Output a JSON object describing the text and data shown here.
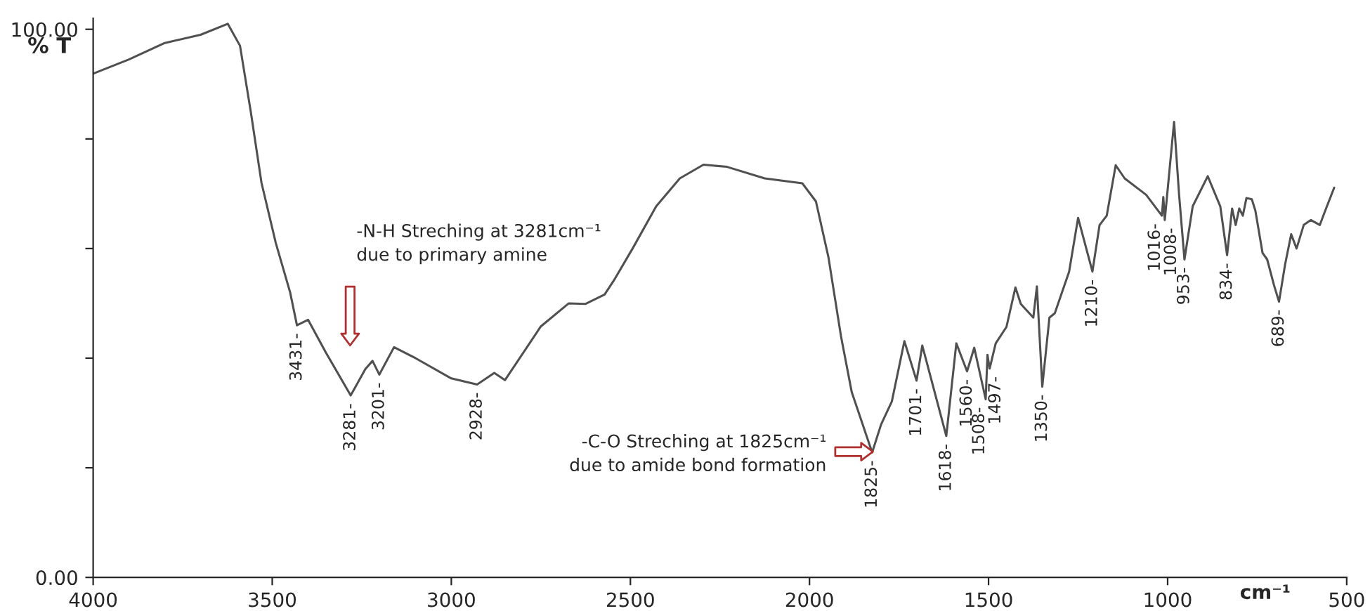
{
  "chart_data": {
    "type": "line",
    "xlabel": "cm⁻¹",
    "ylabel": "% T",
    "xlim": [
      4000,
      500
    ],
    "xticks": [
      4000,
      3500,
      3000,
      2500,
      2000,
      1500,
      1000,
      500
    ],
    "ylim": [
      0,
      102
    ],
    "yticks": [
      {
        "value": 0,
        "label": "0.00"
      },
      {
        "value": 20,
        "label": null
      },
      {
        "value": 40,
        "label": null
      },
      {
        "value": 60,
        "label": null
      },
      {
        "value": 80,
        "label": null
      },
      {
        "value": 100,
        "label": "100.00"
      }
    ],
    "grid": false,
    "legend": false,
    "marker": "none",
    "line_style": "solid",
    "series": [
      {
        "color": "#505050",
        "x": [
          4000,
          3900,
          3800,
          3700,
          3624,
          3590,
          3560,
          3530,
          3490,
          3450,
          3431,
          3400,
          3350,
          3281,
          3240,
          3220,
          3201,
          3160,
          3100,
          3000,
          2928,
          2880,
          2850,
          2750,
          2672,
          2625,
          2572,
          2546,
          2493,
          2428,
          2362,
          2296,
          2230,
          2125,
          2020,
          1982,
          1947,
          1912,
          1882,
          1825,
          1800,
          1770,
          1735,
          1701,
          1685,
          1618,
          1590,
          1560,
          1540,
          1508,
          1503,
          1497,
          1480,
          1450,
          1425,
          1410,
          1375,
          1365,
          1350,
          1330,
          1315,
          1275,
          1250,
          1210,
          1190,
          1170,
          1145,
          1120,
          1060,
          1016,
          1012,
          1008,
          982,
          968,
          953,
          930,
          888,
          853,
          834,
          820,
          810,
          800,
          790,
          780,
          765,
          755,
          735,
          722,
          703,
          689,
          672,
          655,
          640,
          620,
          600,
          575,
          560,
          535
        ],
        "values": [
          91.9,
          94.5,
          97.5,
          99.0,
          101,
          97,
          85,
          72,
          61,
          52,
          46,
          47,
          41,
          33.2,
          38,
          39.5,
          37.0,
          42,
          40,
          36.3,
          35.2,
          37.3,
          36,
          45.8,
          50,
          49.9,
          51.6,
          54.2,
          60.1,
          67.7,
          72.8,
          75.3,
          74.9,
          72.8,
          71.9,
          68.6,
          58.4,
          44.0,
          33.8,
          22.8,
          27.9,
          32.1,
          43.1,
          35.9,
          42.3,
          25.8,
          42.7,
          37.6,
          41.9,
          32.5,
          40.6,
          38.1,
          42.7,
          45.7,
          52.9,
          49.9,
          47.4,
          53.1,
          34.8,
          47.4,
          48.2,
          55.8,
          65.6,
          55.8,
          64.3,
          66.0,
          75.2,
          72.8,
          69.8,
          66.0,
          69.4,
          65.2,
          83.1,
          69.8,
          58.0,
          67.7,
          73.2,
          67.7,
          58.8,
          67.3,
          64.3,
          67.3,
          66.0,
          69.2,
          69.0,
          66.9,
          59.2,
          58.0,
          53.3,
          50.3,
          57.1,
          62.6,
          60.0,
          64.3,
          65.2,
          64.3,
          66.9,
          71.1
        ]
      }
    ],
    "annotations": [
      {
        "text": "3431-",
        "x": 3431,
        "y": 46
      },
      {
        "text": "3281-",
        "x": 3281,
        "y": 33.2
      },
      {
        "text": "3201-",
        "x": 3201,
        "y": 37.0
      },
      {
        "text": "2928-",
        "x": 2928,
        "y": 35.2
      },
      {
        "text": "1825-",
        "x": 1825,
        "y": 22.8
      },
      {
        "text": "1701-",
        "x": 1701,
        "y": 35.9
      },
      {
        "text": "1618-",
        "x": 1618,
        "y": 25.8
      },
      {
        "text": "1560-",
        "x": 1560,
        "y": 37.6
      },
      {
        "text": "1508-",
        "x": 1508,
        "y": 32.5
      },
      {
        "text": "1497-",
        "x": 1497,
        "y": 38.1
      },
      {
        "text": "1350-",
        "x": 1350,
        "y": 34.8
      },
      {
        "text": "1210-",
        "x": 1210,
        "y": 55.8
      },
      {
        "text": "1016-",
        "x": 1016,
        "y": 66.0
      },
      {
        "text": "1008-",
        "x": 1008,
        "y": 65.2
      },
      {
        "text": "953-",
        "x": 953,
        "y": 58.0
      },
      {
        "text": "834-",
        "x": 834,
        "y": 58.8
      },
      {
        "text": "689-",
        "x": 689,
        "y": 50.3
      },
      "-N-H Streching at 3281cm⁻¹\ndue to primary amine",
      "-C-O Streching at 1825cm⁻¹\ndue to amide bond formation"
    ]
  }
}
